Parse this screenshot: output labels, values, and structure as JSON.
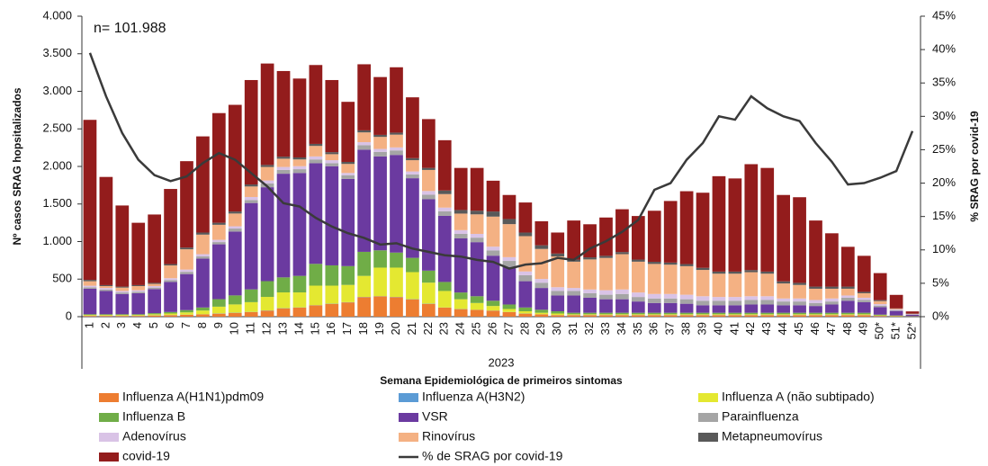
{
  "chart_data": {
    "type": "bar",
    "stacked": true,
    "annotation": "n= 101.988",
    "x_sublabel": "2023",
    "x_label": "Semana Epidemiológica de primeiros sintomas",
    "y_label": "Nº casos SRAG hopsitalizados",
    "y2_label": "% SRAG por covid-19",
    "categories": [
      "1",
      "2",
      "3",
      "4",
      "5",
      "6",
      "7",
      "8",
      "9",
      "10",
      "11",
      "12",
      "13",
      "14",
      "15",
      "16",
      "17",
      "18",
      "19",
      "20",
      "21",
      "22",
      "23",
      "24",
      "25",
      "26",
      "27",
      "28",
      "29",
      "30",
      "31",
      "32",
      "33",
      "34",
      "35",
      "36",
      "37",
      "38",
      "39",
      "40",
      "41",
      "42",
      "43",
      "44",
      "45",
      "46",
      "47",
      "48",
      "49",
      "50*",
      "51*",
      "52*"
    ],
    "ylim": [
      0,
      4000
    ],
    "yticks": [
      0,
      500,
      {
        "value": 1000,
        "label": "1.000"
      },
      {
        "value": 1500,
        "label": "1.500"
      },
      {
        "value": 2000,
        "label": "2.000"
      },
      {
        "value": 2500,
        "label": "2.500"
      },
      {
        "value": 3000,
        "label": "3.000"
      },
      {
        "value": 3500,
        "label": "3.500"
      },
      {
        "value": 4000,
        "label": "4.000"
      }
    ],
    "y2lim": [
      0,
      45
    ],
    "y2ticks": [
      {
        "value": 0,
        "label": "0%"
      },
      {
        "value": 5,
        "label": "5%"
      },
      {
        "value": 10,
        "label": "10%"
      },
      {
        "value": 15,
        "label": "15%"
      },
      {
        "value": 20,
        "label": "20%"
      },
      {
        "value": 25,
        "label": "25%"
      },
      {
        "value": 30,
        "label": "30%"
      },
      {
        "value": 35,
        "label": "35%"
      },
      {
        "value": 40,
        "label": "40%"
      },
      {
        "value": 45,
        "label": "45%"
      }
    ],
    "series": [
      {
        "name": "Influenza A(H1N1)pdm09",
        "color": "#ed7d31",
        "values": [
          10,
          10,
          10,
          10,
          15,
          20,
          25,
          30,
          40,
          50,
          60,
          80,
          110,
          120,
          150,
          170,
          190,
          260,
          270,
          260,
          230,
          170,
          120,
          100,
          90,
          80,
          60,
          40,
          30,
          20,
          20,
          20,
          20,
          20,
          20,
          20,
          20,
          20,
          20,
          20,
          20,
          20,
          20,
          20,
          20,
          20,
          20,
          20,
          20,
          10,
          5,
          2
        ]
      },
      {
        "name": "Influenza A(H3N2)",
        "color": "#5b9bd5",
        "values": [
          2,
          2,
          2,
          2,
          2,
          2,
          2,
          2,
          3,
          3,
          3,
          3,
          3,
          3,
          3,
          3,
          3,
          3,
          3,
          3,
          3,
          3,
          2,
          2,
          2,
          2,
          2,
          2,
          2,
          2,
          2,
          2,
          2,
          2,
          2,
          2,
          2,
          2,
          2,
          2,
          2,
          2,
          2,
          2,
          2,
          2,
          2,
          2,
          2,
          2,
          1,
          1
        ]
      },
      {
        "name": "Influenza A (não subtipado)",
        "color": "#e4e831",
        "values": [
          10,
          10,
          10,
          10,
          15,
          20,
          30,
          50,
          90,
          110,
          130,
          180,
          210,
          200,
          260,
          240,
          230,
          280,
          380,
          390,
          360,
          280,
          220,
          130,
          90,
          60,
          40,
          30,
          20,
          20,
          10,
          10,
          10,
          10,
          10,
          10,
          10,
          10,
          10,
          10,
          10,
          10,
          10,
          10,
          10,
          10,
          10,
          10,
          10,
          5,
          5,
          2
        ]
      },
      {
        "name": "Influenza B",
        "color": "#70ad47",
        "values": [
          10,
          10,
          10,
          10,
          15,
          20,
          30,
          40,
          100,
          120,
          170,
          210,
          200,
          220,
          290,
          270,
          250,
          320,
          230,
          200,
          190,
          160,
          120,
          90,
          90,
          70,
          60,
          50,
          40,
          30,
          20,
          20,
          20,
          20,
          20,
          20,
          20,
          20,
          20,
          20,
          20,
          20,
          20,
          20,
          20,
          20,
          20,
          20,
          20,
          10,
          5,
          2
        ]
      },
      {
        "name": "VSR",
        "color": "#6b3aa0",
        "values": [
          340,
          310,
          270,
          280,
          320,
          400,
          480,
          650,
          730,
          850,
          1150,
          1250,
          1380,
          1370,
          1340,
          1320,
          1160,
          1360,
          1250,
          1300,
          1060,
          950,
          880,
          720,
          720,
          600,
          500,
          350,
          290,
          210,
          230,
          200,
          180,
          180,
          150,
          130,
          130,
          120,
          100,
          100,
          100,
          110,
          110,
          100,
          100,
          90,
          110,
          160,
          140,
          100,
          60,
          20
        ]
      },
      {
        "name": "Parainfluenza",
        "color": "#a5a5a5",
        "values": [
          20,
          20,
          20,
          20,
          20,
          25,
          30,
          30,
          30,
          40,
          40,
          50,
          50,
          50,
          50,
          40,
          50,
          60,
          60,
          60,
          50,
          60,
          60,
          60,
          60,
          70,
          80,
          80,
          70,
          60,
          60,
          60,
          60,
          70,
          60,
          60,
          60,
          60,
          60,
          60,
          60,
          60,
          60,
          50,
          50,
          40,
          40,
          40,
          30,
          20,
          10,
          5
        ]
      },
      {
        "name": "Adenovírus",
        "color": "#d9c3e6",
        "values": [
          20,
          20,
          20,
          20,
          20,
          25,
          30,
          30,
          30,
          30,
          40,
          40,
          40,
          40,
          40,
          40,
          30,
          40,
          40,
          40,
          40,
          50,
          50,
          50,
          50,
          50,
          50,
          50,
          50,
          50,
          40,
          50,
          60,
          60,
          60,
          60,
          60,
          60,
          60,
          50,
          50,
          50,
          50,
          40,
          40,
          40,
          40,
          30,
          30,
          20,
          10,
          3
        ]
      },
      {
        "name": "Rinovírus",
        "color": "#f4b183",
        "values": [
          60,
          25,
          45,
          55,
          30,
          170,
          270,
          260,
          200,
          170,
          140,
          180,
          110,
          90,
          140,
          80,
          120,
          130,
          160,
          170,
          150,
          280,
          180,
          220,
          260,
          400,
          440,
          470,
          400,
          410,
          350,
          400,
          430,
          470,
          410,
          400,
          390,
          380,
          350,
          310,
          310,
          320,
          300,
          200,
          180,
          150,
          130,
          90,
          60,
          40,
          10,
          3
        ]
      },
      {
        "name": "Metapneumovírus",
        "color": "#595959",
        "values": [
          18,
          13,
          13,
          13,
          13,
          18,
          23,
          28,
          27,
          27,
          27,
          27,
          27,
          27,
          27,
          27,
          27,
          27,
          27,
          27,
          27,
          27,
          47,
          48,
          48,
          68,
          68,
          48,
          48,
          38,
          28,
          28,
          28,
          28,
          28,
          28,
          28,
          28,
          28,
          28,
          28,
          28,
          28,
          28,
          28,
          28,
          28,
          28,
          18,
          13,
          4,
          2
        ]
      },
      {
        "name": "covid-19",
        "color": "#931c1c",
        "values": [
          2130,
          1440,
          1080,
          830,
          910,
          1000,
          1150,
          1280,
          1460,
          1420,
          1390,
          1350,
          1140,
          1050,
          1050,
          960,
          800,
          880,
          770,
          870,
          810,
          650,
          670,
          560,
          570,
          410,
          320,
          400,
          320,
          280,
          520,
          440,
          510,
          570,
          580,
          680,
          820,
          970,
          1000,
          1270,
          1240,
          1410,
          1380,
          1150,
          1140,
          880,
          710,
          530,
          480,
          360,
          180,
          30
        ]
      },
      {
        "name": "% de SRAG por covid-19",
        "type": "line",
        "axis": "y2",
        "color": "#3a3a3a",
        "values": [
          39.5,
          33,
          27.5,
          23.5,
          21.2,
          20.3,
          21,
          23,
          24.5,
          23.5,
          21.5,
          19.5,
          17,
          16.5,
          14.8,
          13.5,
          12.5,
          11.8,
          10.8,
          11,
          10.2,
          9.7,
          9.2,
          9,
          8.5,
          8.2,
          7.2,
          7.8,
          8,
          8.8,
          8.5,
          10.2,
          11.3,
          12.7,
          14.5,
          19,
          20,
          23.5,
          26,
          30,
          29.5,
          33,
          31.2,
          30,
          29.3,
          26,
          23.2,
          19.8,
          20,
          20.8,
          21.8,
          27.8
        ]
      }
    ]
  }
}
